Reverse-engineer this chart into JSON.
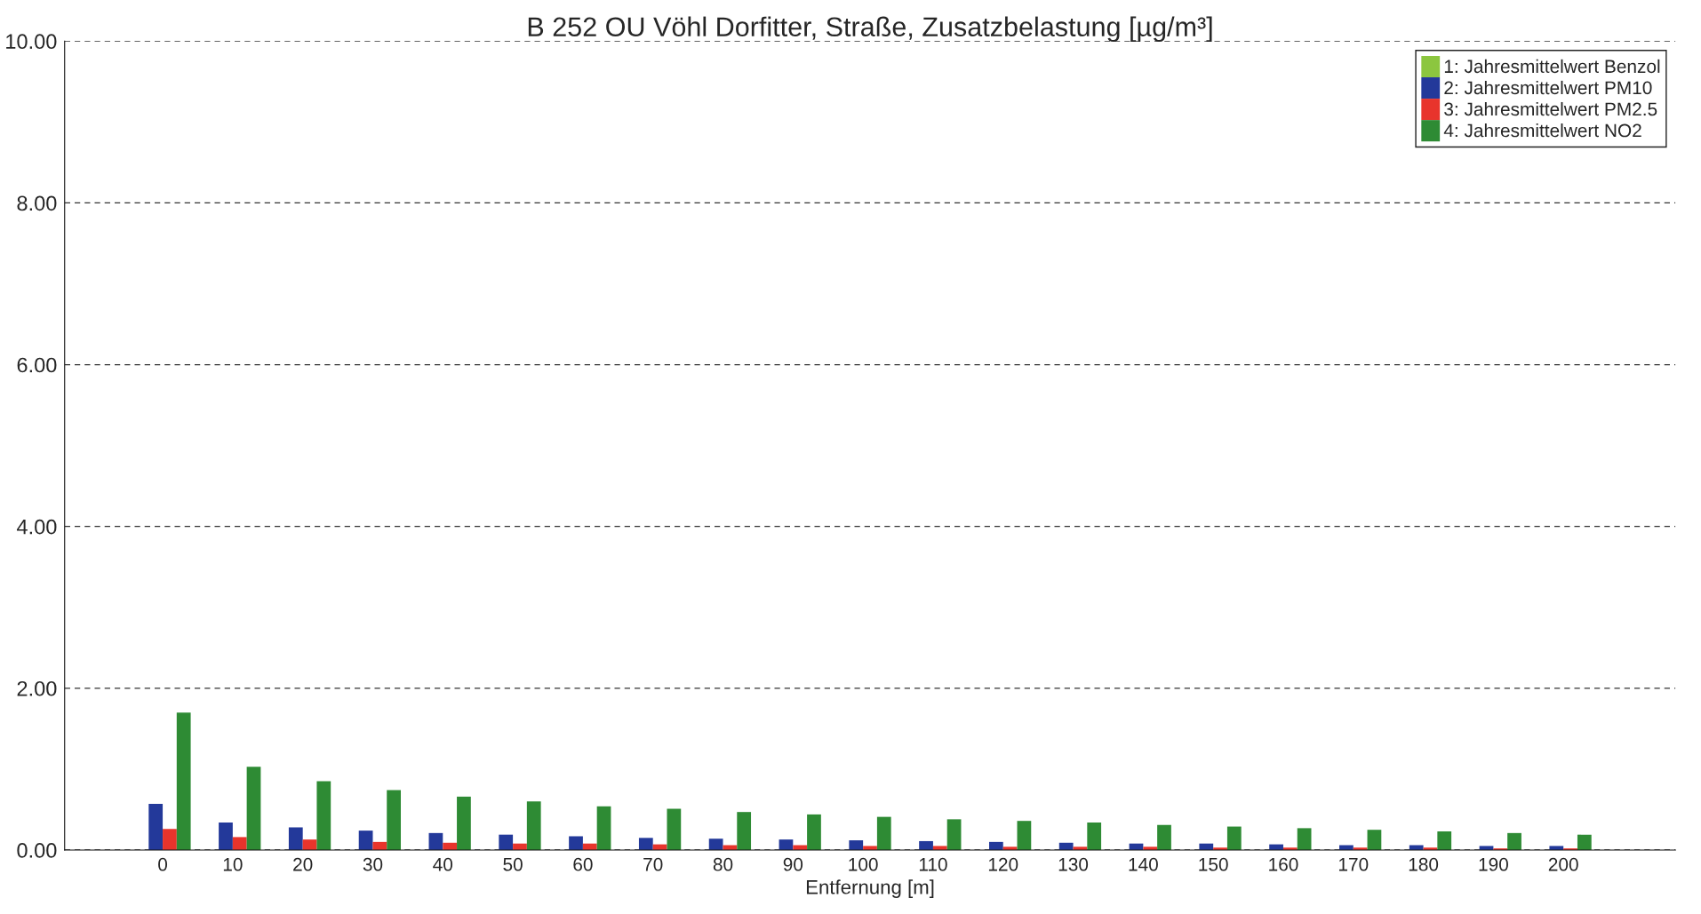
{
  "chart_data": {
    "type": "bar",
    "title": "B 252 OU Vöhl Dorfitter, Straße, Zusatzbelastung [µg/m³]",
    "xlabel": "Entfernung [m]",
    "categories": [
      "0",
      "10",
      "20",
      "30",
      "40",
      "50",
      "60",
      "70",
      "80",
      "90",
      "100",
      "110",
      "120",
      "130",
      "140",
      "150",
      "160",
      "170",
      "180",
      "190",
      "200"
    ],
    "series": [
      {
        "name": "1: Jahresmittelwert Benzol",
        "color": "#8cc63f",
        "values": [
          0,
          0,
          0,
          0,
          0,
          0,
          0,
          0,
          0,
          0,
          0,
          0,
          0,
          0,
          0,
          0,
          0,
          0,
          0,
          0,
          0
        ]
      },
      {
        "name": "2: Jahresmittelwert PM10",
        "color": "#23399a",
        "values": [
          0.57,
          0.34,
          0.28,
          0.24,
          0.21,
          0.19,
          0.17,
          0.15,
          0.14,
          0.13,
          0.12,
          0.11,
          0.1,
          0.09,
          0.08,
          0.08,
          0.07,
          0.06,
          0.06,
          0.05,
          0.05
        ]
      },
      {
        "name": "3: Jahresmittelwert PM2.5",
        "color": "#e8342c",
        "values": [
          0.26,
          0.16,
          0.13,
          0.1,
          0.09,
          0.08,
          0.08,
          0.07,
          0.06,
          0.06,
          0.05,
          0.05,
          0.04,
          0.04,
          0.04,
          0.03,
          0.03,
          0.03,
          0.03,
          0.02,
          0.02
        ]
      },
      {
        "name": "4: Jahresmittelwert NO2",
        "color": "#2e8b34",
        "values": [
          1.7,
          1.03,
          0.85,
          0.74,
          0.66,
          0.6,
          0.54,
          0.51,
          0.47,
          0.44,
          0.41,
          0.38,
          0.36,
          0.34,
          0.31,
          0.29,
          0.27,
          0.25,
          0.23,
          0.21,
          0.19
        ]
      }
    ],
    "ylim": [
      0,
      10
    ],
    "yticks": [
      {
        "value": 0,
        "label": "0.00"
      },
      {
        "value": 2,
        "label": "2.00"
      },
      {
        "value": 4,
        "label": "4.00"
      },
      {
        "value": 6,
        "label": "6.00"
      },
      {
        "value": 8,
        "label": "8.00"
      },
      {
        "value": 10,
        "label": "10.00"
      }
    ],
    "grid": "y",
    "legend": "top right"
  }
}
